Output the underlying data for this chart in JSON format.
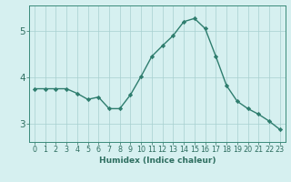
{
  "x": [
    0,
    1,
    2,
    3,
    4,
    5,
    6,
    7,
    8,
    9,
    10,
    11,
    12,
    13,
    14,
    15,
    16,
    17,
    18,
    19,
    20,
    21,
    22,
    23
  ],
  "y": [
    3.75,
    3.75,
    3.75,
    3.75,
    3.65,
    3.52,
    3.57,
    3.32,
    3.32,
    3.62,
    4.02,
    4.45,
    4.68,
    4.9,
    5.2,
    5.27,
    5.05,
    4.45,
    3.82,
    3.48,
    3.32,
    3.2,
    3.05,
    2.87
  ],
  "line_color": "#2e7d6e",
  "marker": "D",
  "marker_size": 2.2,
  "linewidth": 1.0,
  "xlabel": "Humidex (Indice chaleur)",
  "xlabel_fontsize": 6.5,
  "xlabel_color": "#2e7d6e",
  "yticks": [
    3,
    4,
    5
  ],
  "xticks": [
    0,
    1,
    2,
    3,
    4,
    5,
    6,
    7,
    8,
    9,
    10,
    11,
    12,
    13,
    14,
    15,
    16,
    17,
    18,
    19,
    20,
    21,
    22,
    23
  ],
  "xlim": [
    -0.5,
    23.5
  ],
  "ylim": [
    2.6,
    5.55
  ],
  "bg_color": "#d6f0f0",
  "grid_color": "#a8cfcf",
  "axes_color": "#3a8a7a",
  "tick_color": "#2e6e60",
  "ytick_fontsize": 7.5,
  "xtick_fontsize": 5.8
}
